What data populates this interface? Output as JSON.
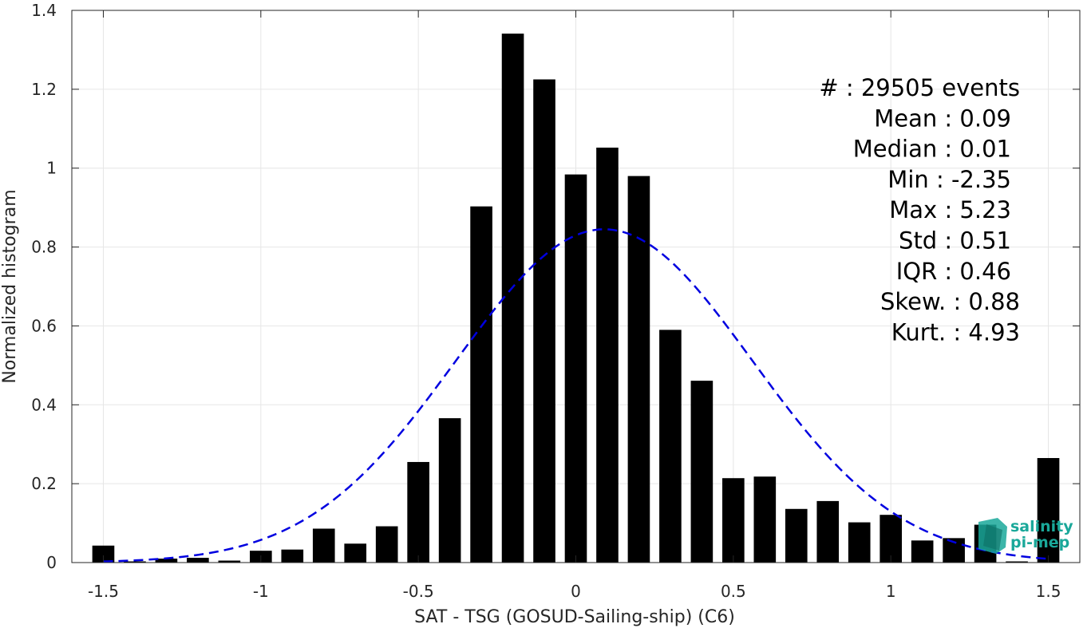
{
  "chart_data": {
    "type": "bar",
    "xlabel": "SAT - TSG (GOSUD-Sailing-ship) (C6)",
    "ylabel": "Normalized histogram",
    "xlim": [
      -1.6,
      1.6
    ],
    "ylim": [
      0,
      1.4
    ],
    "xticks": [
      -1.5,
      -1,
      -0.5,
      0,
      0.5,
      1,
      1.5
    ],
    "xtick_labels": [
      "-1.5",
      "-1",
      "-0.5",
      "0",
      "0.5",
      "1",
      "1.5"
    ],
    "yticks": [
      0,
      0.2,
      0.4,
      0.6,
      0.8,
      1,
      1.2,
      1.4
    ],
    "ytick_labels": [
      "0",
      "0.2",
      "0.4",
      "0.6",
      "0.8",
      "1",
      "1.2",
      "1.4"
    ],
    "grid": true,
    "bar_width": 0.07,
    "bar_color": "#000000",
    "x": [
      -1.5,
      -1.4,
      -1.3,
      -1.2,
      -1.1,
      -1.0,
      -0.9,
      -0.8,
      -0.7,
      -0.6,
      -0.5,
      -0.4,
      -0.3,
      -0.2,
      -0.1,
      0.0,
      0.1,
      0.2,
      0.3,
      0.4,
      0.5,
      0.6,
      0.7,
      0.8,
      0.9,
      1.0,
      1.1,
      1.2,
      1.3,
      1.4,
      1.5
    ],
    "values": [
      0.043,
      0.003,
      0.01,
      0.012,
      0.005,
      0.03,
      0.033,
      0.086,
      0.048,
      0.092,
      0.255,
      0.366,
      0.903,
      1.341,
      1.225,
      0.984,
      1.052,
      0.98,
      0.59,
      0.461,
      0.214,
      0.218,
      0.136,
      0.156,
      0.102,
      0.121,
      0.056,
      0.062,
      0.096,
      0.003,
      0.265
    ],
    "fit": {
      "type": "normal",
      "mean": 0.09,
      "std": 0.47,
      "peak": 0.845,
      "x_range": [
        -1.5,
        1.5
      ],
      "color": "#0000e0",
      "style": "dashed"
    },
    "annotations": [
      "#  : 29505 events",
      "Mean : 0.09",
      "Median : 0.01",
      "Min : -2.35",
      "Max : 5.23",
      "Std : 0.51",
      "IQR : 0.46",
      "Skew. : 0.88",
      "Kurt. : 4.93"
    ]
  },
  "logo": {
    "line1": "salinity",
    "line2": "pi-mep",
    "color": "#1aa89a"
  }
}
